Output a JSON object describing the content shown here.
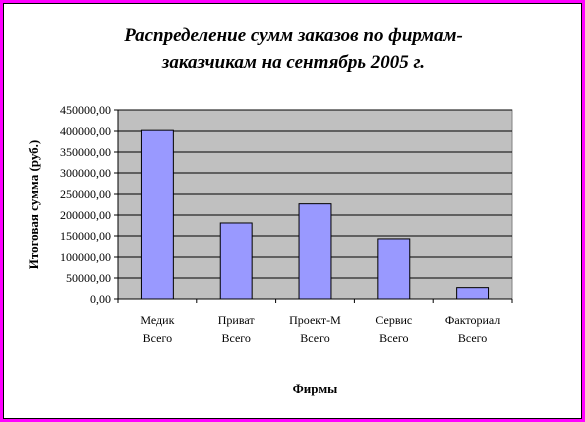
{
  "chart_data": {
    "type": "bar",
    "title_lines": [
      "Распределение сумм заказов по фирмам-",
      "заказчикам на сентябрь 2005 г."
    ],
    "categories": [
      [
        "Медик",
        "Всего"
      ],
      [
        "Приват",
        "Всего"
      ],
      [
        "Проект-М",
        "Всего"
      ],
      [
        "Сервис",
        "Всего"
      ],
      [
        "Факториал",
        "Всего"
      ]
    ],
    "values": [
      402000,
      181000,
      227000,
      143000,
      27000
    ],
    "ylim": [
      0,
      450000
    ],
    "yticks": [
      0,
      50000,
      100000,
      150000,
      200000,
      250000,
      300000,
      350000,
      400000,
      450000
    ],
    "ytick_labels": [
      "0,00",
      "50000,00",
      "100000,00",
      "150000,00",
      "200000,00",
      "250000,00",
      "300000,00",
      "350000,00",
      "400000,00",
      "450000,00"
    ],
    "xlabel": "Фирмы",
    "ylabel": "Итоговая сумма (руб.)",
    "grid": true,
    "legend": "none",
    "colors": {
      "bar": "#9999ff",
      "plot_bg": "#c0c0c0",
      "border": "#ff00ff"
    }
  }
}
